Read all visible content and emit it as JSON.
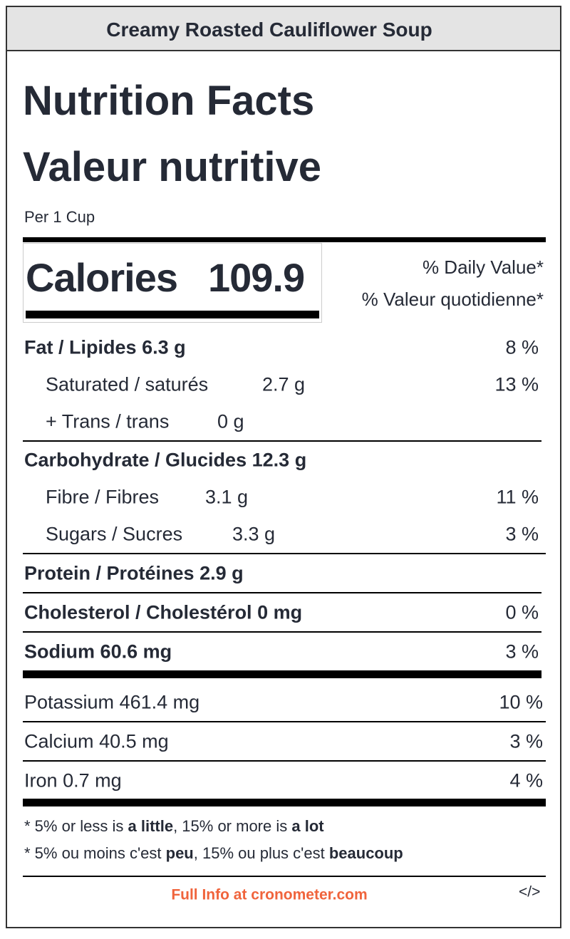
{
  "header": {
    "title": "Creamy Roasted Cauliflower Soup"
  },
  "label": {
    "title_en": "Nutrition Facts",
    "title_fr": "Valeur nutritive",
    "serving": "Per 1 Cup",
    "calories": {
      "label": "Calories",
      "value": "109.9"
    },
    "daily_value_en": "% Daily Value*",
    "daily_value_fr": "% Valeur quotidienne*",
    "nutrients": [
      {
        "name": "Fat / Lipides",
        "amount": "6.3 g",
        "percent": "8 %"
      },
      {
        "name": "Saturated / saturés",
        "amount": "2.7 g",
        "percent": "13 %"
      },
      {
        "name": "+ Trans / trans",
        "amount": "0 g"
      },
      {
        "name": "Carbohydrate / Glucides",
        "amount": "12.3 g"
      },
      {
        "name": "Fibre / Fibres",
        "amount": "3.1 g",
        "percent": "11 %"
      },
      {
        "name": "Sugars / Sucres",
        "amount": "3.3 g",
        "percent": "3 %"
      },
      {
        "name": "Protein / Protéines",
        "amount": "2.9 g"
      },
      {
        "name": "Cholesterol / Cholestérol",
        "amount": "0 mg",
        "percent": "0 %"
      },
      {
        "name": "Sodium",
        "amount": "60.6 mg",
        "percent": "3 %"
      },
      {
        "name": "Potassium",
        "amount": "461.4 mg",
        "percent": "10 %"
      },
      {
        "name": "Calcium",
        "amount": "40.5 mg",
        "percent": "3 %"
      },
      {
        "name": "Iron",
        "amount": "0.7 mg",
        "percent": "4 %"
      }
    ],
    "footnotes": [
      [
        "* 5% or less is ",
        "a little",
        ", 15% or more is ",
        "a lot"
      ],
      [
        "* 5% ou moins c'est ",
        "peu",
        ", 15% ou plus c'est ",
        "beaucoup"
      ]
    ]
  },
  "footer": {
    "link": "Full Info at cronometer.com",
    "embed": "</>"
  }
}
